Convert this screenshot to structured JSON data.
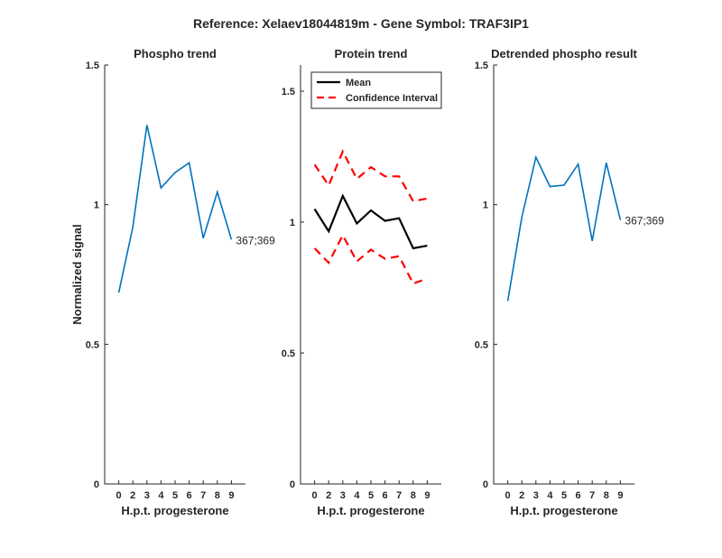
{
  "figure": {
    "title": "Reference:  Xelaev18044819m - Gene Symbol:  TRAF3IP1"
  },
  "chart_data": [
    {
      "type": "line",
      "title": "Phospho trend",
      "xlabel": "H.p.t. progesterone",
      "ylabel": "Normalized signal",
      "categories": [
        "0",
        "2",
        "3",
        "4",
        "5",
        "6",
        "7",
        "8",
        "9"
      ],
      "ylim": [
        0,
        1.5
      ],
      "yticks": [
        "0",
        "0.5",
        "1",
        "1.5"
      ],
      "series": [
        {
          "values": [
            0.685,
            0.92,
            1.285,
            1.06,
            1.115,
            1.15,
            0.88,
            1.045,
            0.875
          ],
          "color": "#0072BD",
          "style": "solid"
        }
      ],
      "annotation": "367;369"
    },
    {
      "type": "line",
      "title": "Protein trend",
      "xlabel": "H.p.t. progesterone",
      "ylabel": "",
      "categories": [
        "0",
        "2",
        "3",
        "4",
        "5",
        "6",
        "7",
        "8",
        "9"
      ],
      "ylim": [
        0,
        1.6
      ],
      "yticks": [
        "0",
        "0.5",
        "1",
        "1.5"
      ],
      "series": [
        {
          "name": "Mean",
          "values": [
            1.05,
            0.965,
            1.1,
            0.995,
            1.045,
            1.005,
            1.015,
            0.9,
            0.91
          ],
          "color": "#000000",
          "style": "solid"
        },
        {
          "name": "Confidence Interval",
          "values": [
            1.22,
            1.14,
            1.27,
            1.165,
            1.21,
            1.175,
            1.175,
            1.08,
            1.09
          ],
          "color": "#FF0000",
          "style": "dashed"
        },
        {
          "name": "Confidence Interval",
          "values": [
            0.9,
            0.845,
            0.95,
            0.85,
            0.895,
            0.86,
            0.87,
            0.765,
            0.785
          ],
          "color": "#FF0000",
          "style": "dashed"
        }
      ],
      "legend": {
        "placement": "top-left",
        "entries": [
          {
            "label": "Mean",
            "color": "#000000",
            "style": "solid"
          },
          {
            "label": "Confidence Interval",
            "color": "#FF0000",
            "style": "dashed"
          }
        ]
      }
    },
    {
      "type": "line",
      "title": "Detrended phospho result",
      "xlabel": "H.p.t. progesterone",
      "ylabel": "",
      "categories": [
        "0",
        "2",
        "3",
        "4",
        "5",
        "6",
        "7",
        "8",
        "9"
      ],
      "ylim": [
        0,
        1.5
      ],
      "yticks": [
        "0",
        "0.5",
        "1",
        "1.5"
      ],
      "series": [
        {
          "values": [
            0.655,
            0.955,
            1.17,
            1.065,
            1.07,
            1.145,
            0.87,
            1.15,
            0.945
          ],
          "color": "#0072BD",
          "style": "solid"
        }
      ],
      "annotation": "367;369"
    }
  ]
}
